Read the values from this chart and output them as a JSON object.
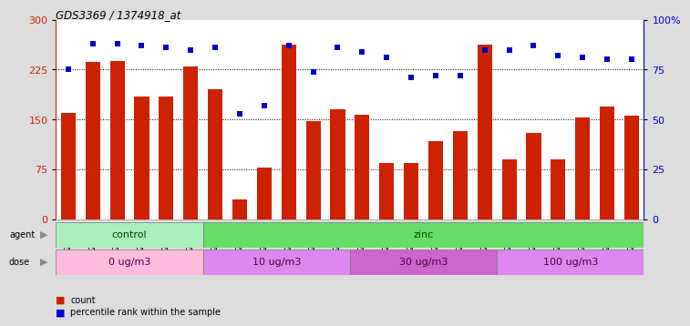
{
  "title": "GDS3369 / 1374918_at",
  "samples": [
    "GSM280163",
    "GSM280164",
    "GSM280165",
    "GSM280166",
    "GSM280167",
    "GSM280168",
    "GSM280169",
    "GSM280170",
    "GSM280171",
    "GSM280172",
    "GSM280173",
    "GSM280174",
    "GSM280175",
    "GSM280176",
    "GSM280177",
    "GSM280178",
    "GSM280179",
    "GSM280180",
    "GSM280181",
    "GSM280182",
    "GSM280183",
    "GSM280184",
    "GSM280185",
    "GSM280186"
  ],
  "counts": [
    160,
    237,
    238,
    185,
    184,
    230,
    195,
    30,
    77,
    262,
    148,
    165,
    157,
    85,
    85,
    117,
    132,
    263,
    90,
    130,
    90,
    153,
    170,
    156
  ],
  "percentile_ranks": [
    75,
    88,
    88,
    87,
    86,
    85,
    86,
    53,
    57,
    87,
    74,
    86,
    84,
    81,
    71,
    72,
    72,
    85,
    85,
    87,
    82,
    81,
    80,
    80
  ],
  "bar_color": "#cc2200",
  "dot_color": "#0000cc",
  "agent_groups": [
    {
      "label": "control",
      "start": 0,
      "end": 6,
      "color": "#aaeebb"
    },
    {
      "label": "zinc",
      "start": 6,
      "end": 24,
      "color": "#66dd66"
    }
  ],
  "dose_groups": [
    {
      "label": "0 ug/m3",
      "start": 0,
      "end": 6,
      "color": "#ffbbdd"
    },
    {
      "label": "10 ug/m3",
      "start": 6,
      "end": 12,
      "color": "#dd88ee"
    },
    {
      "label": "30 ug/m3",
      "start": 12,
      "end": 18,
      "color": "#cc66cc"
    },
    {
      "label": "100 ug/m3",
      "start": 18,
      "end": 24,
      "color": "#dd88ee"
    }
  ],
  "ylim_left": [
    0,
    300
  ],
  "ylim_right": [
    0,
    100
  ],
  "yticks_left": [
    0,
    75,
    150,
    225,
    300
  ],
  "yticks_right": [
    0,
    25,
    50,
    75,
    100
  ],
  "ytick_labels_right": [
    "0",
    "25",
    "50",
    "75",
    "100%"
  ],
  "grid_values": [
    75,
    150,
    225
  ],
  "background_color": "#dddddd",
  "plot_bg": "#ffffff",
  "xtick_bg": "#cccccc"
}
